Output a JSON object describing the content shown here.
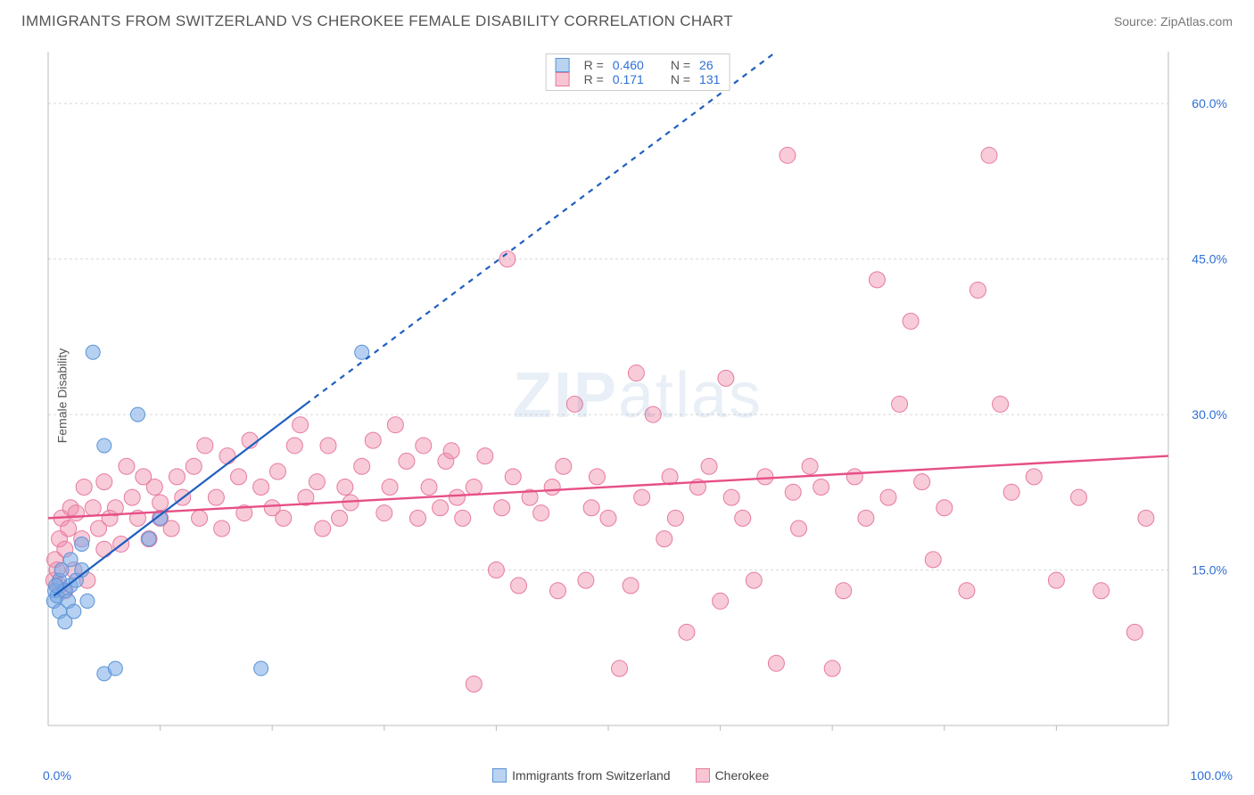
{
  "header": {
    "title": "IMMIGRANTS FROM SWITZERLAND VS CHEROKEE FEMALE DISABILITY CORRELATION CHART",
    "source_prefix": "Source: ",
    "source_name": "ZipAtlas.com"
  },
  "axes": {
    "ylabel": "Female Disability",
    "x_min_label": "0.0%",
    "x_max_label": "100.0%",
    "xlim": [
      0,
      100
    ],
    "ylim": [
      0,
      65
    ],
    "yticks": [
      {
        "v": 15,
        "label": "15.0%"
      },
      {
        "v": 30,
        "label": "30.0%"
      },
      {
        "v": 45,
        "label": "45.0%"
      },
      {
        "v": 60,
        "label": "60.0%"
      }
    ],
    "xticks_minor": [
      10,
      20,
      30,
      40,
      50,
      60,
      70,
      80,
      90
    ],
    "grid_color": "#d8d8d8",
    "axis_color": "#bbbbbb",
    "background_color": "#ffffff"
  },
  "watermark": {
    "text_a": "ZIP",
    "text_b": "atlas"
  },
  "legend": {
    "series_a": {
      "label": "Immigrants from Switzerland",
      "fill": "#b9d3f0",
      "stroke": "#5a93d6"
    },
    "series_b": {
      "label": "Cherokee",
      "fill": "#f7c6d2",
      "stroke": "#e77aa0"
    }
  },
  "stats": {
    "a": {
      "R_label": "R =",
      "R": "0.460",
      "N_label": "N =",
      "N": "26"
    },
    "b": {
      "R_label": "R =",
      "R": "0.171",
      "N_label": "N =",
      "N": "131"
    }
  },
  "series_a": {
    "fill": "rgba(120,170,230,0.55)",
    "stroke": "#5a93d6",
    "marker_r": 8,
    "trend": {
      "solid": {
        "x1": 0.5,
        "y1": 12.5,
        "x2": 23,
        "y2": 31
      },
      "dashed": {
        "x1": 23,
        "y1": 31,
        "x2": 65,
        "y2": 65
      },
      "color": "#1f5fbf",
      "width": 2.2,
      "dash": "6 6"
    },
    "points": [
      [
        0.5,
        12
      ],
      [
        0.6,
        13
      ],
      [
        0.8,
        12.5
      ],
      [
        1,
        11
      ],
      [
        1,
        14
      ],
      [
        1.2,
        15
      ],
      [
        1.5,
        13
      ],
      [
        1.5,
        10
      ],
      [
        1.8,
        12
      ],
      [
        2,
        16
      ],
      [
        2,
        13.5
      ],
      [
        2.3,
        11
      ],
      [
        2.5,
        14
      ],
      [
        3,
        15
      ],
      [
        3,
        17.5
      ],
      [
        3.5,
        12
      ],
      [
        4,
        36
      ],
      [
        5,
        27
      ],
      [
        5,
        5
      ],
      [
        6,
        5.5
      ],
      [
        8,
        30
      ],
      [
        9,
        18
      ],
      [
        10,
        20
      ],
      [
        19,
        5.5
      ],
      [
        28,
        36
      ],
      [
        0.7,
        13.5
      ]
    ]
  },
  "series_b": {
    "fill": "rgba(240,140,170,0.45)",
    "stroke": "#e77aa0",
    "marker_r": 9,
    "trend": {
      "x1": 0,
      "y1": 20,
      "x2": 100,
      "y2": 26,
      "color": "#e64f86",
      "width": 2.4
    },
    "points": [
      [
        0.5,
        14
      ],
      [
        0.6,
        16
      ],
      [
        0.8,
        15
      ],
      [
        1,
        18
      ],
      [
        1,
        13.5
      ],
      [
        1.2,
        20
      ],
      [
        1.5,
        17
      ],
      [
        1.5,
        13
      ],
      [
        1.8,
        19
      ],
      [
        2,
        21
      ],
      [
        2.3,
        15
      ],
      [
        2.5,
        20.5
      ],
      [
        3,
        18
      ],
      [
        3.2,
        23
      ],
      [
        3.5,
        14
      ],
      [
        4,
        21
      ],
      [
        4.5,
        19
      ],
      [
        5,
        23.5
      ],
      [
        5,
        17
      ],
      [
        5.5,
        20
      ],
      [
        6,
        21
      ],
      [
        6.5,
        17.5
      ],
      [
        7,
        25
      ],
      [
        7.5,
        22
      ],
      [
        8,
        20
      ],
      [
        8.5,
        24
      ],
      [
        9,
        18
      ],
      [
        9.5,
        23
      ],
      [
        10,
        21.5
      ],
      [
        10,
        20
      ],
      [
        11,
        19
      ],
      [
        11.5,
        24
      ],
      [
        12,
        22
      ],
      [
        13,
        25
      ],
      [
        13.5,
        20
      ],
      [
        14,
        27
      ],
      [
        15,
        22
      ],
      [
        15.5,
        19
      ],
      [
        16,
        26
      ],
      [
        17,
        24
      ],
      [
        17.5,
        20.5
      ],
      [
        18,
        27.5
      ],
      [
        19,
        23
      ],
      [
        20,
        21
      ],
      [
        20.5,
        24.5
      ],
      [
        21,
        20
      ],
      [
        22,
        27
      ],
      [
        22.5,
        29
      ],
      [
        23,
        22
      ],
      [
        24,
        23.5
      ],
      [
        24.5,
        19
      ],
      [
        25,
        27
      ],
      [
        26,
        20
      ],
      [
        26.5,
        23
      ],
      [
        27,
        21.5
      ],
      [
        28,
        25
      ],
      [
        29,
        27.5
      ],
      [
        30,
        20.5
      ],
      [
        30.5,
        23
      ],
      [
        31,
        29
      ],
      [
        32,
        25.5
      ],
      [
        33,
        20
      ],
      [
        33.5,
        27
      ],
      [
        34,
        23
      ],
      [
        35,
        21
      ],
      [
        35.5,
        25.5
      ],
      [
        36,
        26.5
      ],
      [
        36.5,
        22
      ],
      [
        37,
        20
      ],
      [
        38,
        23
      ],
      [
        38,
        4
      ],
      [
        39,
        26
      ],
      [
        40,
        15
      ],
      [
        40.5,
        21
      ],
      [
        41,
        45
      ],
      [
        41.5,
        24
      ],
      [
        42,
        13.5
      ],
      [
        43,
        22
      ],
      [
        44,
        20.5
      ],
      [
        45,
        23
      ],
      [
        45.5,
        13
      ],
      [
        46,
        25
      ],
      [
        47,
        31
      ],
      [
        48,
        14
      ],
      [
        48.5,
        21
      ],
      [
        49,
        24
      ],
      [
        50,
        20
      ],
      [
        51,
        5.5
      ],
      [
        52,
        13.5
      ],
      [
        52.5,
        34
      ],
      [
        53,
        22
      ],
      [
        54,
        30
      ],
      [
        55,
        18
      ],
      [
        55.5,
        24
      ],
      [
        56,
        20
      ],
      [
        57,
        9
      ],
      [
        58,
        23
      ],
      [
        59,
        25
      ],
      [
        60,
        12
      ],
      [
        60.5,
        33.5
      ],
      [
        61,
        22
      ],
      [
        62,
        20
      ],
      [
        63,
        14
      ],
      [
        64,
        24
      ],
      [
        65,
        6
      ],
      [
        66,
        55
      ],
      [
        66.5,
        22.5
      ],
      [
        67,
        19
      ],
      [
        68,
        25
      ],
      [
        69,
        23
      ],
      [
        70,
        5.5
      ],
      [
        71,
        13
      ],
      [
        72,
        24
      ],
      [
        73,
        20
      ],
      [
        74,
        43
      ],
      [
        75,
        22
      ],
      [
        76,
        31
      ],
      [
        77,
        39
      ],
      [
        78,
        23.5
      ],
      [
        79,
        16
      ],
      [
        80,
        21
      ],
      [
        82,
        13
      ],
      [
        84,
        55
      ],
      [
        85,
        31
      ],
      [
        86,
        22.5
      ],
      [
        88,
        24
      ],
      [
        90,
        14
      ],
      [
        92,
        22
      ],
      [
        94,
        13
      ],
      [
        97,
        9
      ],
      [
        98,
        20
      ],
      [
        83,
        42
      ]
    ]
  }
}
